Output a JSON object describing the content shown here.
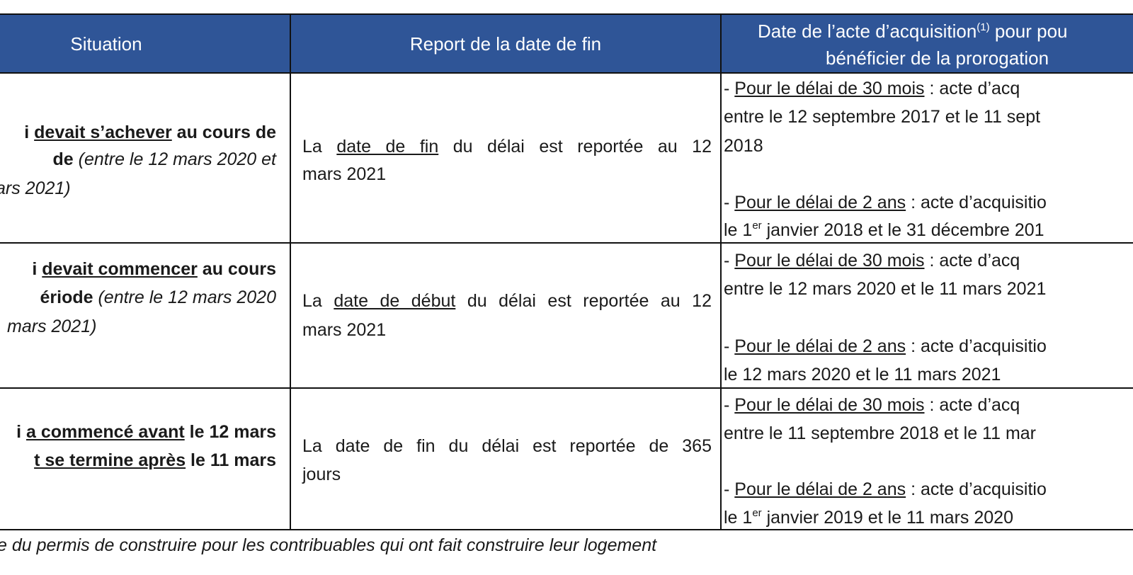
{
  "header": {
    "situation": "Situation",
    "report": "Report de la date de fin",
    "acquisition": [
      [
        "Date de l’acte d’acquisition",
        "(1)",
        " pour pou"
      ],
      [
        "bénéficier de la prorogation"
      ]
    ]
  },
  "rows": [
    {
      "situation": [
        [
          "i ",
          "devait s’achever",
          " au cours de"
        ],
        [
          "de",
          " (entre le 12 mars 2020 et"
        ],
        [
          "ars 2021)"
        ]
      ],
      "report": [
        [
          "La ",
          "date de fin",
          " du délai est reportée au 12"
        ],
        [
          "mars 2021"
        ]
      ],
      "acquisition": [
        [
          "- ",
          "Pour le délai de 30 mois",
          " : acte d’acq"
        ],
        [
          "entre le 12 septembre 2017 et le 11 sept"
        ],
        [
          "2018"
        ],
        [
          "- ",
          "Pour le délai de 2 ans",
          " : acte d’acquisitio"
        ],
        [
          "le 1",
          "er",
          " janvier 2018 et le 31 décembre 201"
        ]
      ]
    },
    {
      "situation": [
        [
          "i ",
          "devait commencer",
          " au cours"
        ],
        [
          "ériode",
          " (entre le 12 mars 2020"
        ],
        [
          "mars 2021)"
        ]
      ],
      "report": [
        [
          "La ",
          "date de début",
          " du délai est reportée au 12"
        ],
        [
          "mars 2021"
        ]
      ],
      "acquisition": [
        [
          "- ",
          "Pour le délai de 30 mois",
          " : acte d’acq"
        ],
        [
          "entre le 12 mars 2020 et le 11 mars 2021"
        ],
        [
          "- ",
          "Pour le délai de 2 ans",
          " : acte d’acquisitio"
        ],
        [
          "le 12 mars 2020 et le 11 mars 2021"
        ]
      ]
    },
    {
      "situation": [
        [
          "i ",
          "a commencé avant",
          " le 12 mars"
        ],
        [
          "t se termine après",
          " le 11 mars"
        ]
      ],
      "report": [
        [
          "La date de fin du délai est reportée de 365"
        ],
        [
          "jours"
        ]
      ],
      "acquisition": [
        [
          "- ",
          "Pour le délai de 30 mois",
          " : acte d’acq"
        ],
        [
          "entre le 11 septembre 2018 et le 11 mar"
        ],
        [
          "- ",
          "Pour le délai de 2 ans",
          " : acte d’acquisitio"
        ],
        [
          "le 1",
          "er",
          " janvier 2019 et le 11 mars 2020"
        ]
      ]
    }
  ],
  "footnote": "e du permis de construire pour les contribuables qui ont fait construire leur logement"
}
